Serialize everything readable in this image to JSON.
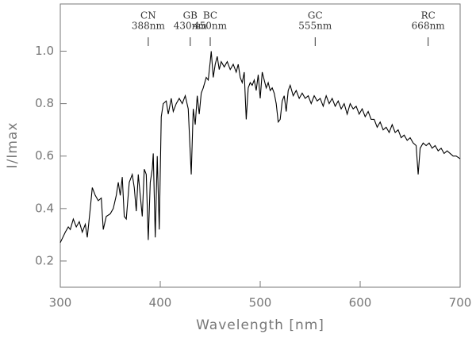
{
  "chart_data": {
    "type": "line",
    "xlabel": "Wavelength [nm]",
    "ylabel": "I/Imax",
    "xlim": [
      300,
      700
    ],
    "ylim": [
      0.1,
      1.18
    ],
    "xticks": [
      300,
      400,
      500,
      600,
      700
    ],
    "yticks": [
      0.2,
      0.4,
      0.6,
      0.8,
      {
        "value": 1.0,
        "label": "1.0"
      }
    ],
    "color": "#000000",
    "annotations": [
      {
        "text": "CN",
        "sub": "388nm",
        "x": 388
      },
      {
        "text": "GB",
        "sub": "430nm",
        "x": 430
      },
      {
        "text": "BC",
        "sub": "450nm",
        "x": 450
      },
      {
        "text": "GC",
        "sub": "555nm",
        "x": 555
      },
      {
        "text": "RC",
        "sub": "668nm",
        "x": 668
      }
    ],
    "x": [
      300,
      305,
      308,
      310,
      313,
      316,
      319,
      322,
      325,
      327,
      330,
      332,
      335,
      338,
      341,
      343,
      346,
      350,
      353,
      356,
      358,
      360,
      362,
      364,
      366,
      369,
      372,
      374,
      376,
      378,
      380,
      382,
      384,
      386,
      388,
      390,
      392,
      393,
      395,
      397,
      399,
      401,
      403,
      406,
      408,
      411,
      413,
      416,
      419,
      422,
      425,
      428,
      431,
      433,
      435,
      437,
      439,
      441,
      443,
      446,
      448,
      450,
      451,
      453,
      455,
      457,
      459,
      461,
      464,
      467,
      470,
      473,
      476,
      478,
      480,
      482,
      484,
      486,
      488,
      490,
      492,
      494,
      496,
      498,
      500,
      502,
      504,
      506,
      508,
      510,
      512,
      514,
      516,
      518,
      520,
      522,
      524,
      526,
      528,
      530,
      533,
      536,
      539,
      542,
      545,
      548,
      551,
      554,
      557,
      560,
      563,
      566,
      569,
      572,
      575,
      578,
      581,
      584,
      587,
      590,
      593,
      596,
      599,
      602,
      605,
      608,
      611,
      614,
      617,
      620,
      623,
      626,
      629,
      632,
      635,
      638,
      641,
      644,
      647,
      650,
      653,
      656,
      658,
      660,
      663,
      666,
      669,
      672,
      675,
      678,
      681,
      684,
      687,
      690,
      693,
      696,
      700
    ],
    "values": [
      0.27,
      0.31,
      0.33,
      0.32,
      0.36,
      0.33,
      0.35,
      0.31,
      0.34,
      0.29,
      0.4,
      0.48,
      0.45,
      0.43,
      0.44,
      0.32,
      0.37,
      0.38,
      0.4,
      0.45,
      0.5,
      0.45,
      0.52,
      0.37,
      0.36,
      0.5,
      0.53,
      0.48,
      0.39,
      0.53,
      0.45,
      0.37,
      0.55,
      0.53,
      0.28,
      0.5,
      0.55,
      0.61,
      0.29,
      0.6,
      0.32,
      0.75,
      0.8,
      0.81,
      0.76,
      0.82,
      0.77,
      0.8,
      0.82,
      0.8,
      0.83,
      0.78,
      0.53,
      0.78,
      0.72,
      0.83,
      0.76,
      0.84,
      0.86,
      0.9,
      0.89,
      0.96,
      1.0,
      0.9,
      0.95,
      0.98,
      0.93,
      0.96,
      0.94,
      0.96,
      0.93,
      0.95,
      0.92,
      0.95,
      0.9,
      0.88,
      0.92,
      0.74,
      0.86,
      0.88,
      0.87,
      0.89,
      0.85,
      0.91,
      0.82,
      0.92,
      0.89,
      0.86,
      0.88,
      0.85,
      0.86,
      0.84,
      0.8,
      0.73,
      0.74,
      0.81,
      0.83,
      0.77,
      0.85,
      0.87,
      0.83,
      0.85,
      0.82,
      0.84,
      0.82,
      0.83,
      0.8,
      0.83,
      0.81,
      0.82,
      0.79,
      0.83,
      0.8,
      0.82,
      0.79,
      0.81,
      0.78,
      0.8,
      0.76,
      0.8,
      0.78,
      0.79,
      0.76,
      0.78,
      0.75,
      0.77,
      0.74,
      0.74,
      0.71,
      0.73,
      0.7,
      0.71,
      0.69,
      0.72,
      0.69,
      0.7,
      0.67,
      0.68,
      0.66,
      0.67,
      0.65,
      0.64,
      0.53,
      0.63,
      0.65,
      0.64,
      0.65,
      0.63,
      0.64,
      0.62,
      0.63,
      0.61,
      0.62,
      0.61,
      0.6,
      0.6,
      0.59
    ]
  }
}
